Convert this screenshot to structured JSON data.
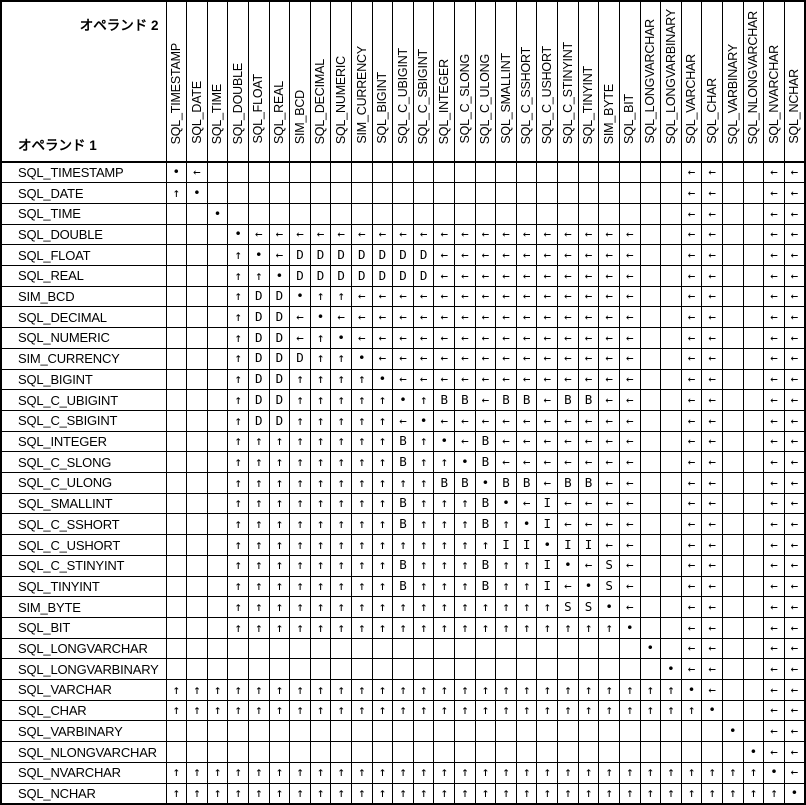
{
  "header": {
    "operand2_label": "オペランド 2",
    "operand1_label": "オペランド 1"
  },
  "matrix": {
    "types": [
      "SQL_TIMESTAMP",
      "SQL_DATE",
      "SQL_TIME",
      "SQL_DOUBLE",
      "SQL_FLOAT",
      "SQL_REAL",
      "SIM_BCD",
      "SQL_DECIMAL",
      "SQL_NUMERIC",
      "SIM_CURRENCY",
      "SQL_BIGINT",
      "SQL_C_UBIGINT",
      "SQL_C_SBIGINT",
      "SQL_INTEGER",
      "SQL_C_SLONG",
      "SQL_C_ULONG",
      "SQL_SMALLINT",
      "SQL_C_SSHORT",
      "SQL_C_USHORT",
      "SQL_C_STINYINT",
      "SQL_TINYINT",
      "SIM_BYTE",
      "SQL_BIT",
      "SQL_LONGVARCHAR",
      "SQL_LONGVARBINARY",
      "SQL_VARCHAR",
      "SQL_CHAR",
      "SQL_VARBINARY",
      "SQL_NLONGVARCHAR",
      "SQL_NVARCHAR",
      "SQL_NCHAR"
    ],
    "symbols_used": [
      "•",
      "←",
      "↑",
      "D",
      "B",
      "I",
      "S"
    ],
    "rows": [
      "•←                       ←←  ←←",
      "↑•                       ←←  ←←",
      "  •                      ←←  ←←",
      "   •←←←←←←←←←←←←←←←←←←←  ←←  ←←",
      "   ↑•←DDDDDDD←←←←←←←←←←  ←←  ←←",
      "   ↑↑•DDDDDDD←←←←←←←←←←  ←←  ←←",
      "   ↑DD•↑↑←←←←←←←←←←←←←←  ←←  ←←",
      "   ↑DD←•←←←←←←←←←←←←←←←  ←←  ←←",
      "   ↑DD←↑•←←←←←←←←←←←←←←  ←←  ←←",
      "   ↑DDD↑↑•←←←←←←←←←←←←←  ←←  ←←",
      "   ↑DD↑↑↑↑•←←←←←←←←←←←←  ←←  ←←",
      "   ↑DD↑↑↑↑↑•↑BB←BB←BB←←  ←←  ←←",
      "   ↑DD↑↑↑↑↑←•←←←←←←←←←←  ←←  ←←",
      "   ↑↑↑↑↑↑↑↑B↑•←B←←←←←←←  ←←  ←←",
      "   ↑↑↑↑↑↑↑↑B↑↑•B←←←←←←←  ←←  ←←",
      "   ↑↑↑↑↑↑↑↑↑↑BB•BB←BB←←  ←←  ←←",
      "   ↑↑↑↑↑↑↑↑B↑↑↑B•←I←←←←  ←←  ←←",
      "   ↑↑↑↑↑↑↑↑B↑↑↑B↑•I←←←←  ←←  ←←",
      "   ↑↑↑↑↑↑↑↑↑↑↑↑↑II•II←←  ←←  ←←",
      "   ↑↑↑↑↑↑↑↑B↑↑↑B↑↑I•←S←  ←←  ←←",
      "   ↑↑↑↑↑↑↑↑B↑↑↑B↑↑I←•S←  ←←  ←←",
      "   ↑↑↑↑↑↑↑↑↑↑↑↑↑↑↑↑SS•←  ←←  ←←",
      "   ↑↑↑↑↑↑↑↑↑↑↑↑↑↑↑↑↑↑↑•  ←←  ←←",
      "                       • ←←  ←←",
      "                        •←←  ←←",
      "↑↑↑↑↑↑↑↑↑↑↑↑↑↑↑↑↑↑↑↑↑↑↑↑↑•←  ←←",
      "↑↑↑↑↑↑↑↑↑↑↑↑↑↑↑↑↑↑↑↑↑↑↑↑↑↑•  ←←",
      "                           • ←←",
      "                            •←←",
      "↑↑↑↑↑↑↑↑↑↑↑↑↑↑↑↑↑↑↑↑↑↑↑↑↑↑↑↑↑•←",
      "↑↑↑↑↑↑↑↑↑↑↑↑↑↑↑↑↑↑↑↑↑↑↑↑↑↑↑↑↑↑•"
    ]
  },
  "colors": {
    "background": "#ffffff",
    "grid_line": "#000000",
    "text": "#000000"
  }
}
